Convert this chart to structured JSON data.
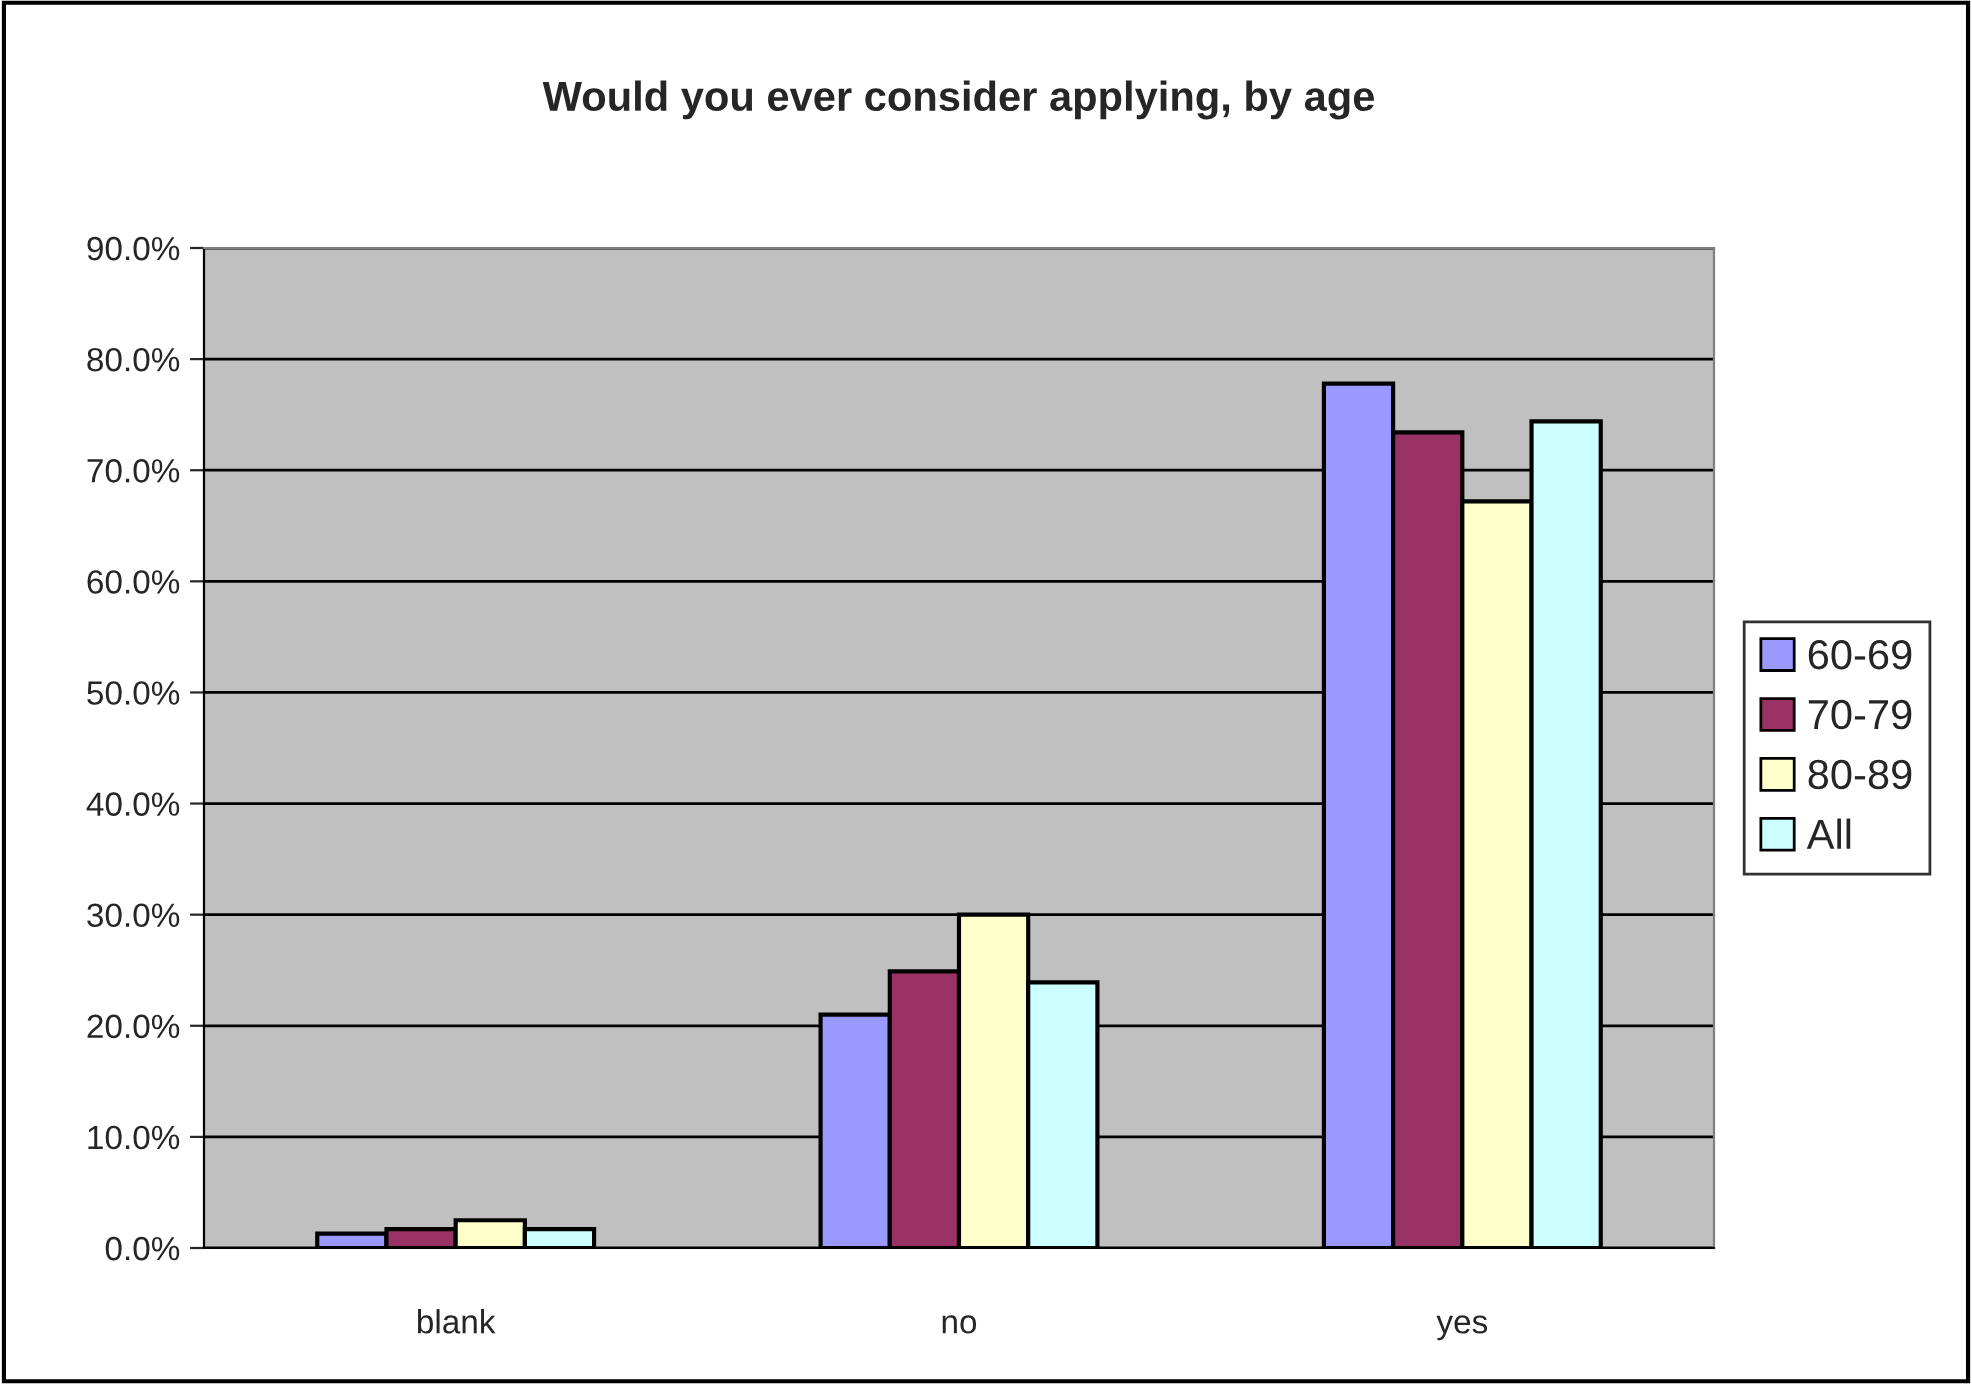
{
  "chart_data": {
    "type": "bar",
    "title": "Would you ever consider applying, by age",
    "categories": [
      "blank",
      "no",
      "yes"
    ],
    "series": [
      {
        "name": "60-69",
        "color": "#9999ff",
        "values": [
          1.3,
          21.0,
          77.8
        ]
      },
      {
        "name": "70-79",
        "color": "#993366",
        "values": [
          1.7,
          24.9,
          73.4
        ]
      },
      {
        "name": "80-89",
        "color": "#ffffcc",
        "values": [
          2.5,
          30.0,
          67.2
        ]
      },
      {
        "name": "All",
        "color": "#ccffff",
        "values": [
          1.7,
          23.9,
          74.4
        ]
      }
    ],
    "ylim": [
      0,
      90
    ],
    "yticks": [
      {
        "value": 0,
        "label": "0.0%"
      },
      {
        "value": 10,
        "label": "10.0%"
      },
      {
        "value": 20,
        "label": "20.0%"
      },
      {
        "value": 30,
        "label": "30.0%"
      },
      {
        "value": 40,
        "label": "40.0%"
      },
      {
        "value": 50,
        "label": "50.0%"
      },
      {
        "value": 60,
        "label": "60.0%"
      },
      {
        "value": 70,
        "label": "70.0%"
      },
      {
        "value": 80,
        "label": "80.0%"
      },
      {
        "value": 90,
        "label": "90.0%"
      }
    ],
    "grid": "y",
    "legend": "right"
  }
}
